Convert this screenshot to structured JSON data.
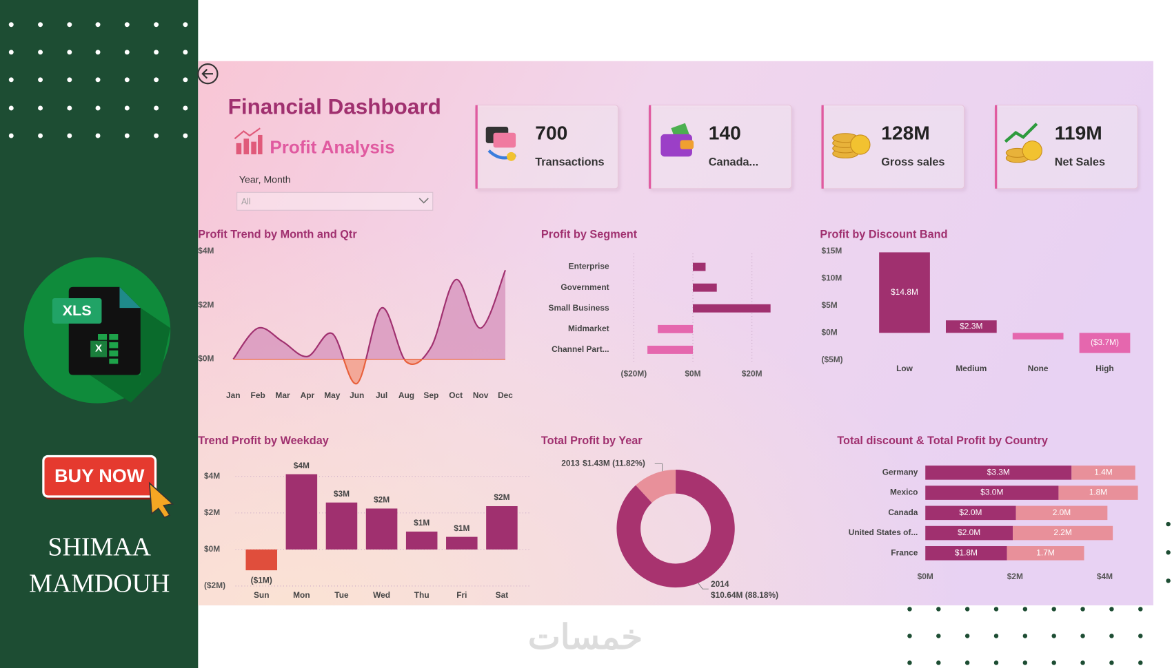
{
  "sidebar": {
    "badge": "XLS",
    "sheet_letter": "X",
    "button": "BUY NOW",
    "author": [
      "SHIMAA",
      "MAMDOUH"
    ]
  },
  "watermark": "خمسات",
  "header": {
    "title": "Financial Dashboard",
    "subtitle": "Profit Analysis",
    "filter_label": "Year, Month",
    "filter_value": "All"
  },
  "kpis": [
    {
      "value": "700",
      "label": "Transactions"
    },
    {
      "value": "140",
      "label": "Canada..."
    },
    {
      "value": "128M",
      "label": "Gross sales"
    },
    {
      "value": "119M",
      "label": "Net Sales"
    }
  ],
  "chart_data": [
    {
      "type": "line",
      "title": "Profit Trend by Month and Qtr",
      "categories": [
        "Jan",
        "Feb",
        "Mar",
        "Apr",
        "May",
        "Jun",
        "Jul",
        "Aug",
        "Sep",
        "Oct",
        "Nov",
        "Dec"
      ],
      "values": [
        0,
        1150000,
        650000,
        100000,
        950000,
        -900000,
        1900000,
        -100000,
        450000,
        2950000,
        1150000,
        3300000
      ],
      "ylim": [
        -1000000,
        4000000
      ],
      "yticks": [
        {
          "value": 0,
          "label": "$0M"
        },
        {
          "value": 2000000,
          "label": "$2M"
        },
        {
          "value": 4000000,
          "label": "$4M"
        }
      ],
      "color": "#a0306f",
      "fill": "#d690bb",
      "negative_color": "#e8603c",
      "negative_fill": "#f2a08c"
    },
    {
      "type": "bar",
      "orientation": "horizontal",
      "title": "Profit by Segment",
      "categories": [
        "Enterprise",
        "Government",
        "Small Business",
        "Midmarket",
        "Channel Part..."
      ],
      "values": [
        4300000,
        8100000,
        26300000,
        -11900000,
        -15400000
      ],
      "xlim": [
        -25000000,
        30000000
      ],
      "xticks": [
        {
          "value": -20000000,
          "label": "($20M)"
        },
        {
          "value": 0,
          "label": "$0M"
        },
        {
          "value": 20000000,
          "label": "$20M"
        }
      ],
      "grid": true,
      "color": "#a0306f",
      "negative_color": "#e567ae"
    },
    {
      "type": "bar",
      "title": "Profit by Discount Band",
      "categories": [
        "Low",
        "Medium",
        "None",
        "High"
      ],
      "values": [
        14800000,
        2300000,
        -1200000,
        -3700000
      ],
      "value_labels": [
        "$14.8M",
        "$2.3M",
        null,
        "($3.7M)"
      ],
      "colors": [
        "#a0306f",
        "#a0306f",
        "#e567ae",
        "#e567ae"
      ],
      "ylim": [
        -5000000,
        15000000
      ],
      "yticks": [
        {
          "value": -5000000,
          "label": "($5M)"
        },
        {
          "value": 0,
          "label": "$0M"
        },
        {
          "value": 5000000,
          "label": "$5M"
        },
        {
          "value": 10000000,
          "label": "$10M"
        },
        {
          "value": 15000000,
          "label": "$15M"
        }
      ]
    },
    {
      "type": "bar",
      "title": "Trend Profit by Weekday",
      "categories": [
        "Sun",
        "Mon",
        "Tue",
        "Wed",
        "Thu",
        "Fri",
        "Sat"
      ],
      "values": [
        -1140000,
        4120000,
        2570000,
        2240000,
        980000,
        690000,
        2370000
      ],
      "value_labels": [
        "($1M)",
        "$4M",
        "$3M",
        "$2M",
        "$1M",
        "$1M",
        "$2M"
      ],
      "colors": [
        "#e04e3c",
        "#a0306f",
        "#a0306f",
        "#a0306f",
        "#a0306f",
        "#a0306f",
        "#a0306f"
      ],
      "ylim": [
        -2000000,
        4500000
      ],
      "yticks": [
        {
          "value": -2000000,
          "label": "($2M)"
        },
        {
          "value": 0,
          "label": "$0M"
        },
        {
          "value": 2000000,
          "label": "$2M"
        },
        {
          "value": 4000000,
          "label": "$4M"
        }
      ],
      "grid": true
    },
    {
      "type": "donut",
      "title": "Total Profit by Year",
      "categories": [
        "2013",
        "2014"
      ],
      "values": [
        1430000,
        10640000
      ],
      "value_labels": [
        "$1.43M (11.82%)",
        "$10.64M (88.18%)"
      ],
      "colors": [
        "#e8909a",
        "#a8336f"
      ]
    },
    {
      "type": "bar",
      "orientation": "horizontal",
      "stacked": true,
      "title": "Total discount & Total Profit by Country",
      "categories": [
        "Germany",
        "Mexico",
        "Canada",
        "United States of...",
        "France"
      ],
      "series": [
        {
          "color": "#a0306f",
          "values": [
            3260000,
            2970000,
            2020000,
            1950000,
            1820000
          ],
          "value_labels": [
            "$3.3M",
            "$3.0M",
            "$2.0M",
            "$2.0M",
            "$1.8M"
          ]
        },
        {
          "color": "#e8909a",
          "values": [
            1420000,
            1770000,
            2040000,
            2230000,
            1720000
          ],
          "value_labels": [
            "1.4M",
            "1.8M",
            "2.0M",
            "2.2M",
            "1.7M"
          ]
        }
      ],
      "xlim": [
        0,
        4800000
      ],
      "xticks": [
        {
          "value": 0,
          "label": "$0M"
        },
        {
          "value": 2000000,
          "label": "$2M"
        },
        {
          "value": 4000000,
          "label": "$4M"
        }
      ]
    }
  ]
}
